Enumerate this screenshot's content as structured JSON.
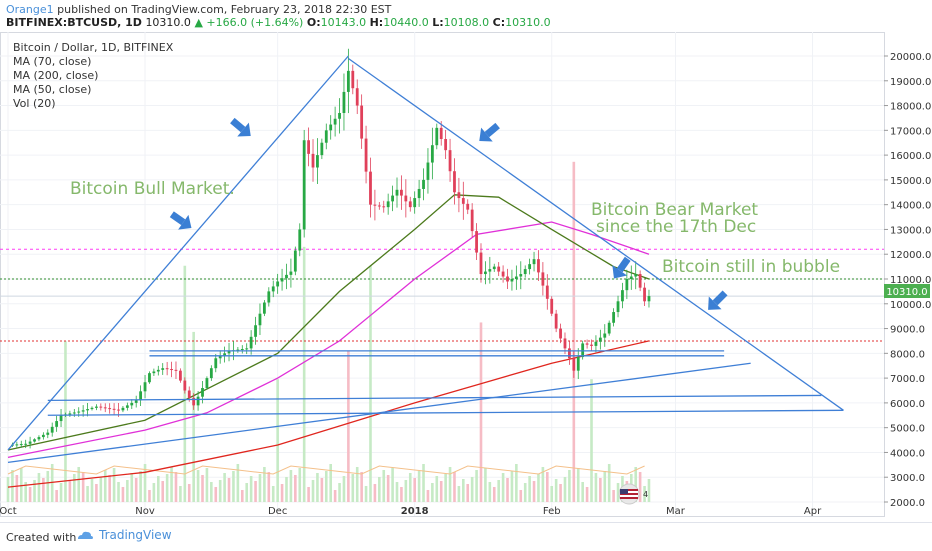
{
  "header": {
    "author": "Orange1",
    "published_text": "published on TradingView.com, February 23, 2018 22:30 EST",
    "symbol": "BITFINEX:BTCUSD, 1D",
    "last": "10310.0",
    "change": "▲ +166.0 (+1.64%)",
    "o_label": "O:",
    "o_value": "10143.0",
    "h_label": "H:",
    "h_value": "10440.0",
    "l_label": "L:",
    "l_value": "10108.0",
    "c_label": "C:",
    "c_value": "10310.0"
  },
  "legend": {
    "title": "Bitcoin / Dollar, 1D, BITFINEX",
    "ma70": "MA (70, close)",
    "ma200": "MA (200, close)",
    "ma50": "MA (50, close)",
    "vol": "Vol (20)"
  },
  "annotations": {
    "bull": "Bitcoin Bull Market.",
    "bear_line1": "Bitcoin Bear Market",
    "bear_line2": "since the 17th Dec",
    "bubble": "Bitcoin still in bubble"
  },
  "price_tag": "10310.0",
  "footer": {
    "created_with": "Created with",
    "brand": "TradingView"
  },
  "flag_badge": "4",
  "colors": {
    "up": "#27a844",
    "down": "#e0405a",
    "blue_line": "#3f7fd6",
    "ma70": "#e031d8",
    "ma200": "#e0261e",
    "ma50": "#4c7a1c",
    "bull_text": "#85b86b",
    "magenta_level": "#ff3df5",
    "green_level": "#2e8b2e",
    "red_level": "#e03030"
  },
  "chart_data": {
    "type": "candlestick",
    "title": "Bitcoin / Dollar, 1D, BITFINEX",
    "ylim": [
      1500,
      20500
    ],
    "y_ticks": [
      "20000.0",
      "19000.0",
      "18000.0",
      "17000.0",
      "16000.0",
      "15000.0",
      "14000.0",
      "13000.0",
      "12000.0",
      "11000.0",
      "10000.0",
      "9000.0",
      "8000.0",
      "7000.0",
      "6000.0",
      "5000.0",
      "4000.0",
      "3000.0",
      "2000.0"
    ],
    "x_ticks": [
      "Oct",
      "Nov",
      "Dec",
      "2018",
      "Feb",
      "Mar",
      "Apr"
    ],
    "x_tick_dates": [
      "2017-10-01",
      "2017-11-01",
      "2017-12-01",
      "2018-01-01",
      "2018-02-01",
      "2018-03-01",
      "2018-04-01"
    ],
    "x_range": [
      "2017-10-01",
      "2018-04-14"
    ],
    "price_points": [
      [
        "2017-10-01",
        4300
      ],
      [
        "2017-10-05",
        4350
      ],
      [
        "2017-10-10",
        4800
      ],
      [
        "2017-10-13",
        5500
      ],
      [
        "2017-10-17",
        5650
      ],
      [
        "2017-10-21",
        5850
      ],
      [
        "2017-10-26",
        5700
      ],
      [
        "2017-10-30",
        6100
      ],
      [
        "2017-11-02",
        7200
      ],
      [
        "2017-11-05",
        7400
      ],
      [
        "2017-11-08",
        7300
      ],
      [
        "2017-11-10",
        6500
      ],
      [
        "2017-11-12",
        5900
      ],
      [
        "2017-11-14",
        6600
      ],
      [
        "2017-11-17",
        7800
      ],
      [
        "2017-11-20",
        8100
      ],
      [
        "2017-11-24",
        8200
      ],
      [
        "2017-11-27",
        9600
      ],
      [
        "2017-11-29",
        10500
      ],
      [
        "2017-12-01",
        10900
      ],
      [
        "2017-12-04",
        11300
      ],
      [
        "2017-12-06",
        13000
      ],
      [
        "2017-12-07",
        16600
      ],
      [
        "2017-12-09",
        15500
      ],
      [
        "2017-12-12",
        17000
      ],
      [
        "2017-12-15",
        17700
      ],
      [
        "2017-12-17",
        19400
      ],
      [
        "2017-12-19",
        18000
      ],
      [
        "2017-12-22",
        14000
      ],
      [
        "2017-12-25",
        13900
      ],
      [
        "2017-12-28",
        14600
      ],
      [
        "2017-12-31",
        13900
      ],
      [
        "2018-01-03",
        15000
      ],
      [
        "2018-01-06",
        17100
      ],
      [
        "2018-01-08",
        16200
      ],
      [
        "2018-01-10",
        14500
      ],
      [
        "2018-01-13",
        13800
      ],
      [
        "2018-01-16",
        11200
      ],
      [
        "2018-01-19",
        11500
      ],
      [
        "2018-01-22",
        10900
      ],
      [
        "2018-01-25",
        11200
      ],
      [
        "2018-01-28",
        11800
      ],
      [
        "2018-01-31",
        10200
      ],
      [
        "2018-02-02",
        9000
      ],
      [
        "2018-02-05",
        7800
      ],
      [
        "2018-02-06",
        7300
      ],
      [
        "2018-02-08",
        8400
      ],
      [
        "2018-02-10",
        8300
      ],
      [
        "2018-02-13",
        8800
      ],
      [
        "2018-02-16",
        10100
      ],
      [
        "2018-02-18",
        11000
      ],
      [
        "2018-02-20",
        11200
      ],
      [
        "2018-02-22",
        10100
      ],
      [
        "2018-02-23",
        10310
      ]
    ],
    "ma70": [
      [
        "2017-10-01",
        3800
      ],
      [
        "2017-11-01",
        4900
      ],
      [
        "2017-11-15",
        5600
      ],
      [
        "2017-12-01",
        7000
      ],
      [
        "2017-12-15",
        8500
      ],
      [
        "2018-01-01",
        11000
      ],
      [
        "2018-01-15",
        12800
      ],
      [
        "2018-02-01",
        13300
      ],
      [
        "2018-02-10",
        12800
      ],
      [
        "2018-02-23",
        12000
      ]
    ],
    "ma200": [
      [
        "2017-10-01",
        2600
      ],
      [
        "2017-11-01",
        3200
      ],
      [
        "2017-12-01",
        4300
      ],
      [
        "2018-01-01",
        6000
      ],
      [
        "2018-02-01",
        7600
      ],
      [
        "2018-02-23",
        8500
      ]
    ],
    "ma50": [
      [
        "2017-10-01",
        4100
      ],
      [
        "2017-11-01",
        5300
      ],
      [
        "2017-12-01",
        8000
      ],
      [
        "2017-12-15",
        10500
      ],
      [
        "2018-01-01",
        13000
      ],
      [
        "2018-01-10",
        14400
      ],
      [
        "2018-01-20",
        14300
      ],
      [
        "2018-02-01",
        13000
      ],
      [
        "2018-02-15",
        11500
      ],
      [
        "2018-02-23",
        11000
      ]
    ],
    "horizontal_levels": [
      12200,
      11000,
      10310,
      8500
    ],
    "trend_lines": [
      [
        [
          "2017-10-01",
          4100
        ],
        [
          "2017-12-17",
          20000
        ]
      ],
      [
        [
          "2017-12-17",
          19900
        ],
        [
          "2018-04-08",
          5700
        ]
      ],
      [
        [
          "2017-10-01",
          3600
        ],
        [
          "2018-03-18",
          7600
        ]
      ],
      [
        [
          "2017-11-02",
          8100
        ],
        [
          "2018-03-12",
          8100
        ]
      ],
      [
        [
          "2017-11-02",
          7900
        ],
        [
          "2018-03-12",
          7900
        ]
      ],
      [
        [
          "2017-10-10",
          6100
        ],
        [
          "2018-04-03",
          6300
        ]
      ],
      [
        [
          "2017-10-10",
          5500
        ],
        [
          "2018-04-08",
          5700
        ]
      ]
    ],
    "volume": [
      [
        "2017-10-14",
        1700
      ],
      [
        "2017-11-10",
        2500
      ],
      [
        "2017-11-12",
        1800
      ],
      [
        "2017-12-01",
        1300
      ],
      [
        "2017-12-07",
        2700
      ],
      [
        "2017-12-17",
        1600
      ],
      [
        "2017-12-22",
        2500
      ],
      [
        "2018-01-16",
        1900
      ],
      [
        "2018-02-06",
        3600
      ],
      [
        "2018-02-10",
        1300
      ]
    ],
    "volume_scale": {
      "base": 1700,
      "max_height_units": 4000
    }
  }
}
